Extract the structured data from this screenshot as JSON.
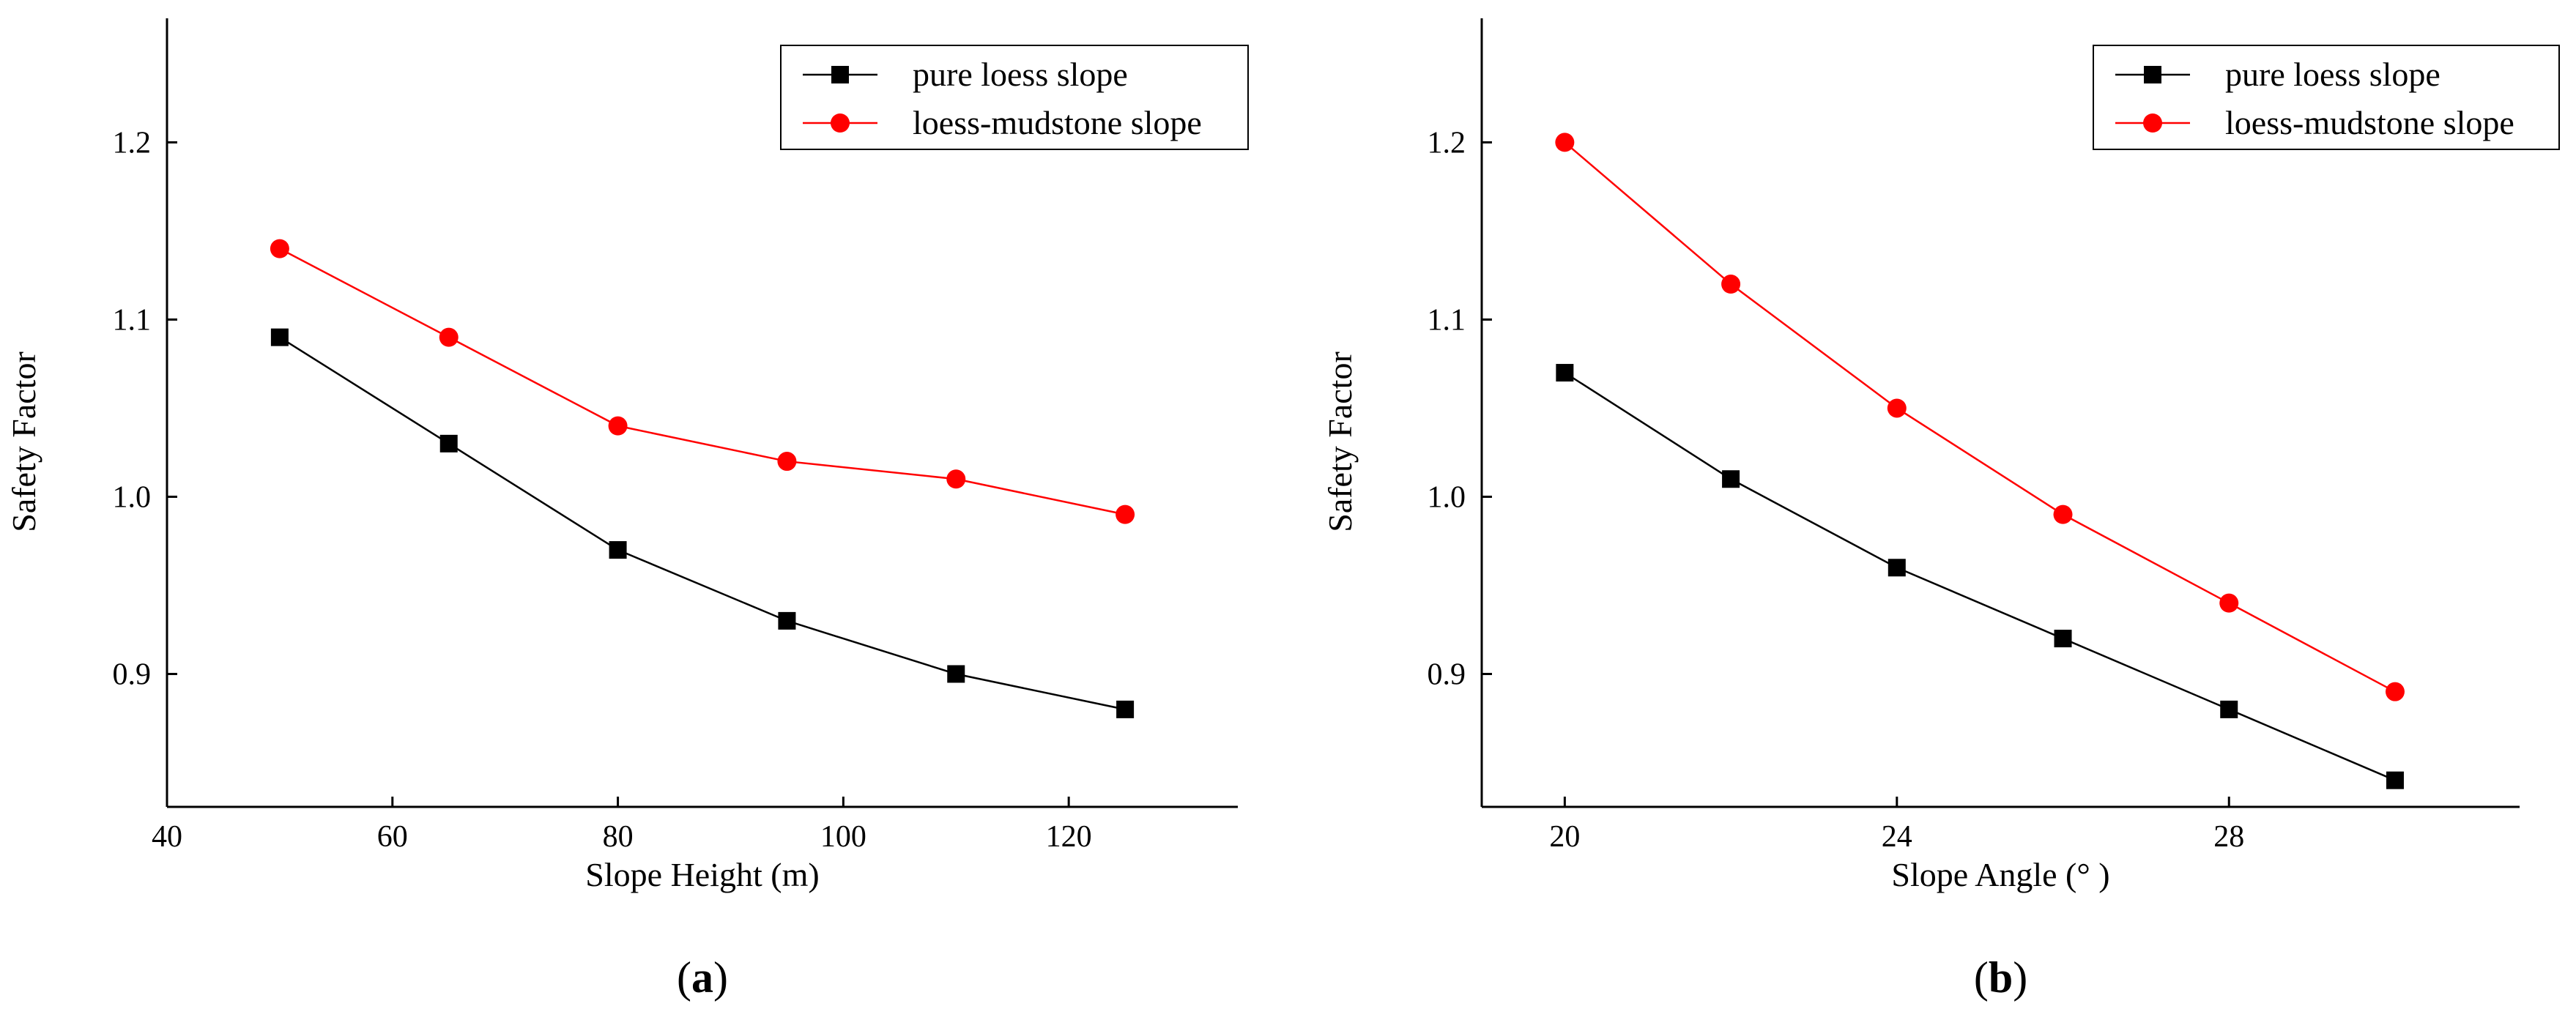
{
  "chart_data": [
    {
      "panel": "(a)",
      "panel_letter": "a",
      "type": "line",
      "xlabel": "Slope Height (m)",
      "ylabel": "Safety Factor",
      "xlim": [
        40,
        135
      ],
      "ylim": [
        0.825,
        1.27
      ],
      "xticks": [
        40,
        60,
        80,
        100,
        120
      ],
      "xtick_labels": [
        "40",
        "60",
        "80",
        "100",
        "120"
      ],
      "yticks": [
        0.9,
        1.0,
        1.1,
        1.2
      ],
      "ytick_labels": [
        "0.9",
        "1.0",
        "1.1",
        "1.2"
      ],
      "legend_position": "top-right",
      "x": [
        50,
        65,
        80,
        95,
        110,
        125
      ],
      "series": [
        {
          "name": "pure loess slope",
          "color": "#000000",
          "marker": "square",
          "values": [
            1.09,
            1.03,
            0.97,
            0.93,
            0.9,
            0.88
          ]
        },
        {
          "name": "loess-mudstone slope",
          "color": "#ff0000",
          "marker": "circle",
          "values": [
            1.14,
            1.09,
            1.04,
            1.02,
            1.01,
            0.99
          ]
        }
      ]
    },
    {
      "panel": "(b)",
      "panel_letter": "b",
      "type": "line",
      "xlabel": "Slope Angle (°  )",
      "ylabel": "Safety Factor",
      "xlim": [
        19,
        31.5
      ],
      "ylim": [
        0.825,
        1.27
      ],
      "xticks": [
        20,
        24,
        28
      ],
      "xtick_labels": [
        "20",
        "24",
        "28"
      ],
      "yticks": [
        0.9,
        1.0,
        1.1,
        1.2
      ],
      "ytick_labels": [
        "0.9",
        "1.0",
        "1.1",
        "1.2"
      ],
      "legend_position": "top-right",
      "x": [
        20,
        22,
        24,
        26,
        28,
        30
      ],
      "series": [
        {
          "name": "pure loess slope",
          "color": "#000000",
          "marker": "square",
          "values": [
            1.07,
            1.01,
            0.96,
            0.92,
            0.88,
            0.84
          ]
        },
        {
          "name": "loess-mudstone slope",
          "color": "#ff0000",
          "marker": "circle",
          "values": [
            1.2,
            1.12,
            1.05,
            0.99,
            0.94,
            0.89
          ]
        }
      ]
    }
  ]
}
